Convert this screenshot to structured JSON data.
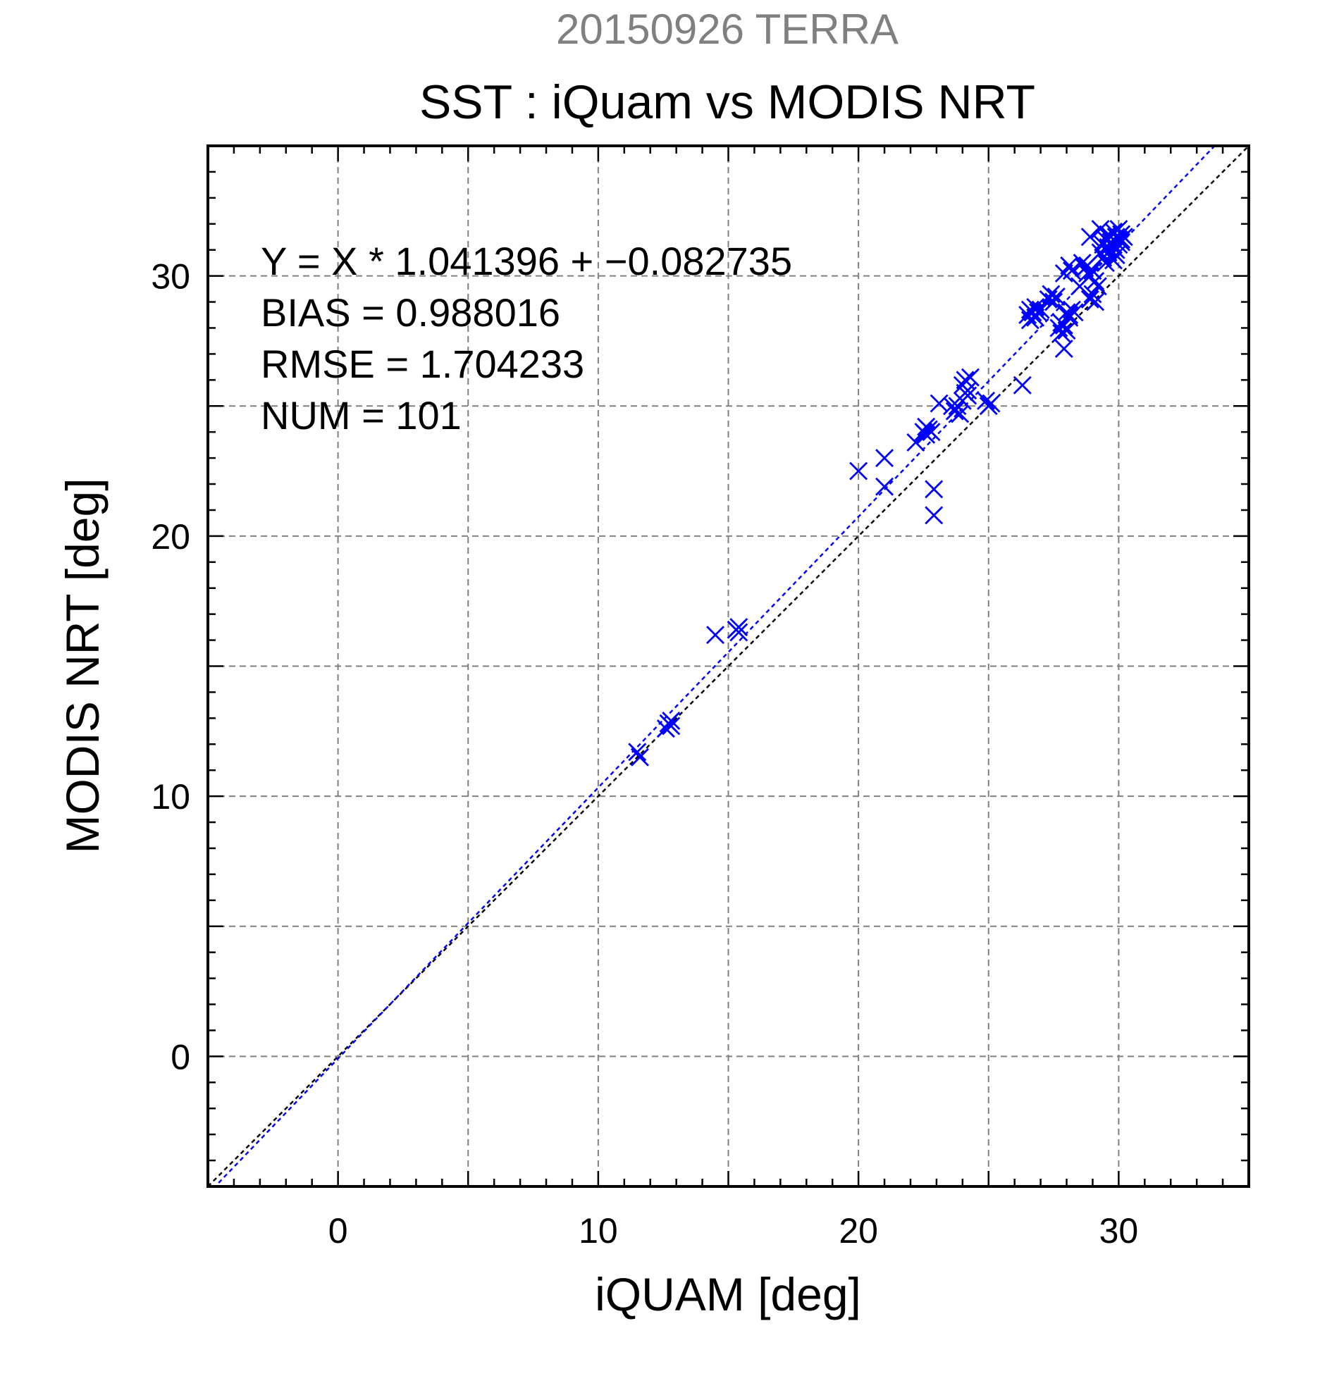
{
  "chart_data": {
    "type": "scatter",
    "supertitle": "20150926 TERRA",
    "title": "SST : iQuam vs MODIS NRT",
    "xlabel": "iQUAM [deg]",
    "ylabel": "MODIS NRT [deg]",
    "xlim": [
      -5,
      35
    ],
    "ylim": [
      -5,
      35
    ],
    "major_ticks": [
      0,
      10,
      20,
      30
    ],
    "grid_step": 5,
    "minor_tick_step": 1,
    "grid": true,
    "annotations": [
      "Y = X * 1.041396 + −0.082735",
      "BIAS = 0.988016",
      "RMSE = 1.704233",
      "NUM = 101"
    ],
    "fit_line": {
      "slope": 1.041396,
      "intercept": -0.082735,
      "color": "#0000ff"
    },
    "identity_line": {
      "slope": 1,
      "intercept": 0,
      "color": "#000000"
    },
    "marker_color": "#0000ff",
    "series": [
      {
        "marker": "x",
        "points": [
          [
            11.5,
            11.7
          ],
          [
            11.6,
            11.5
          ],
          [
            12.7,
            12.8
          ],
          [
            12.8,
            12.7
          ],
          [
            12.6,
            12.6
          ],
          [
            12.8,
            12.9
          ],
          [
            14.5,
            16.2
          ],
          [
            15.3,
            16.4
          ],
          [
            15.4,
            16.3
          ],
          [
            15.4,
            16.5
          ],
          [
            20.0,
            22.5
          ],
          [
            21.0,
            23.0
          ],
          [
            21.0,
            21.9
          ],
          [
            22.2,
            23.6
          ],
          [
            22.6,
            24.2
          ],
          [
            22.5,
            24.0
          ],
          [
            22.7,
            24.1
          ],
          [
            22.8,
            24.0
          ],
          [
            22.6,
            23.9
          ],
          [
            22.9,
            21.8
          ],
          [
            22.9,
            20.8
          ],
          [
            23.1,
            25.1
          ],
          [
            23.6,
            25.0
          ],
          [
            23.7,
            24.8
          ],
          [
            23.8,
            25.0
          ],
          [
            23.9,
            24.7
          ],
          [
            24.0,
            25.2
          ],
          [
            24.0,
            25.8
          ],
          [
            24.1,
            26.0
          ],
          [
            24.2,
            25.6
          ],
          [
            24.3,
            26.1
          ],
          [
            24.2,
            25.4
          ],
          [
            24.1,
            25.5
          ],
          [
            24.9,
            25.2
          ],
          [
            25.0,
            25.0
          ],
          [
            25.1,
            25.1
          ],
          [
            26.3,
            25.8
          ],
          [
            26.5,
            28.5
          ],
          [
            26.6,
            28.7
          ],
          [
            26.7,
            28.6
          ],
          [
            26.8,
            28.4
          ],
          [
            26.9,
            28.6
          ],
          [
            27.0,
            28.7
          ],
          [
            26.6,
            28.3
          ],
          [
            26.8,
            28.8
          ],
          [
            27.3,
            29.1
          ],
          [
            27.4,
            29.3
          ],
          [
            27.5,
            29.0
          ],
          [
            27.6,
            29.2
          ],
          [
            27.7,
            28.0
          ],
          [
            27.8,
            27.8
          ],
          [
            27.9,
            28.1
          ],
          [
            28.0,
            27.9
          ],
          [
            27.8,
            28.2
          ],
          [
            28.0,
            28.6
          ],
          [
            28.1,
            28.5
          ],
          [
            28.2,
            28.7
          ],
          [
            28.3,
            28.6
          ],
          [
            28.1,
            28.4
          ],
          [
            27.9,
            27.2
          ],
          [
            27.9,
            30.1
          ],
          [
            28.1,
            30.4
          ],
          [
            28.2,
            30.2
          ],
          [
            28.5,
            29.6
          ],
          [
            28.6,
            30.5
          ],
          [
            28.7,
            30.3
          ],
          [
            28.8,
            30.4
          ],
          [
            28.9,
            30.0
          ],
          [
            29.0,
            30.2
          ],
          [
            28.8,
            30.1
          ],
          [
            29.1,
            29.8
          ],
          [
            28.9,
            29.1
          ],
          [
            29.0,
            29.3
          ],
          [
            29.1,
            29.0
          ],
          [
            29.2,
            29.6
          ],
          [
            28.9,
            31.5
          ],
          [
            29.3,
            31.8
          ],
          [
            29.4,
            31.2
          ],
          [
            29.5,
            31.4
          ],
          [
            29.6,
            31.6
          ],
          [
            29.7,
            31.3
          ],
          [
            29.8,
            31.7
          ],
          [
            29.9,
            31.5
          ],
          [
            30.0,
            31.8
          ],
          [
            30.1,
            31.6
          ],
          [
            30.2,
            31.5
          ],
          [
            29.4,
            30.7
          ],
          [
            29.6,
            30.9
          ],
          [
            29.7,
            31.0
          ],
          [
            29.8,
            31.1
          ],
          [
            29.9,
            31.0
          ],
          [
            30.0,
            31.2
          ],
          [
            30.1,
            31.3
          ],
          [
            29.5,
            30.5
          ],
          [
            29.8,
            30.6
          ],
          [
            29.9,
            30.8
          ],
          [
            30.1,
            31.4
          ],
          [
            29.3,
            30.9
          ],
          [
            29.6,
            31.1
          ],
          [
            29.7,
            31.5
          ],
          [
            30.0,
            31.4
          ]
        ]
      }
    ]
  }
}
